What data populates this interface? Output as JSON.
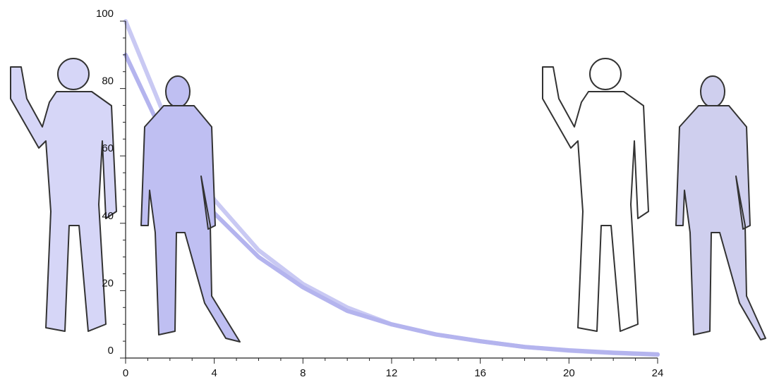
{
  "chart_data": {
    "type": "line",
    "x": [
      0,
      2,
      4,
      6,
      8,
      10,
      12,
      14,
      16,
      18,
      20,
      22,
      24
    ],
    "series": [
      {
        "color": "#c9c9f3",
        "values": [
          100,
          68,
          47,
          32,
          22,
          15,
          10,
          7,
          5,
          3.3,
          2.2,
          1.5,
          1
        ]
      },
      {
        "color": "#b4b4ee",
        "values": [
          90,
          62,
          43,
          30,
          21,
          14,
          10,
          7,
          5,
          3.3,
          2.3,
          1.6,
          1.1
        ]
      }
    ],
    "xlim": [
      0,
      24
    ],
    "xticks": [
      0,
      4,
      8,
      12,
      16,
      20,
      24
    ],
    "ylim": [
      0,
      100
    ],
    "yticks": [
      0,
      20,
      40,
      60,
      80,
      100
    ]
  }
}
